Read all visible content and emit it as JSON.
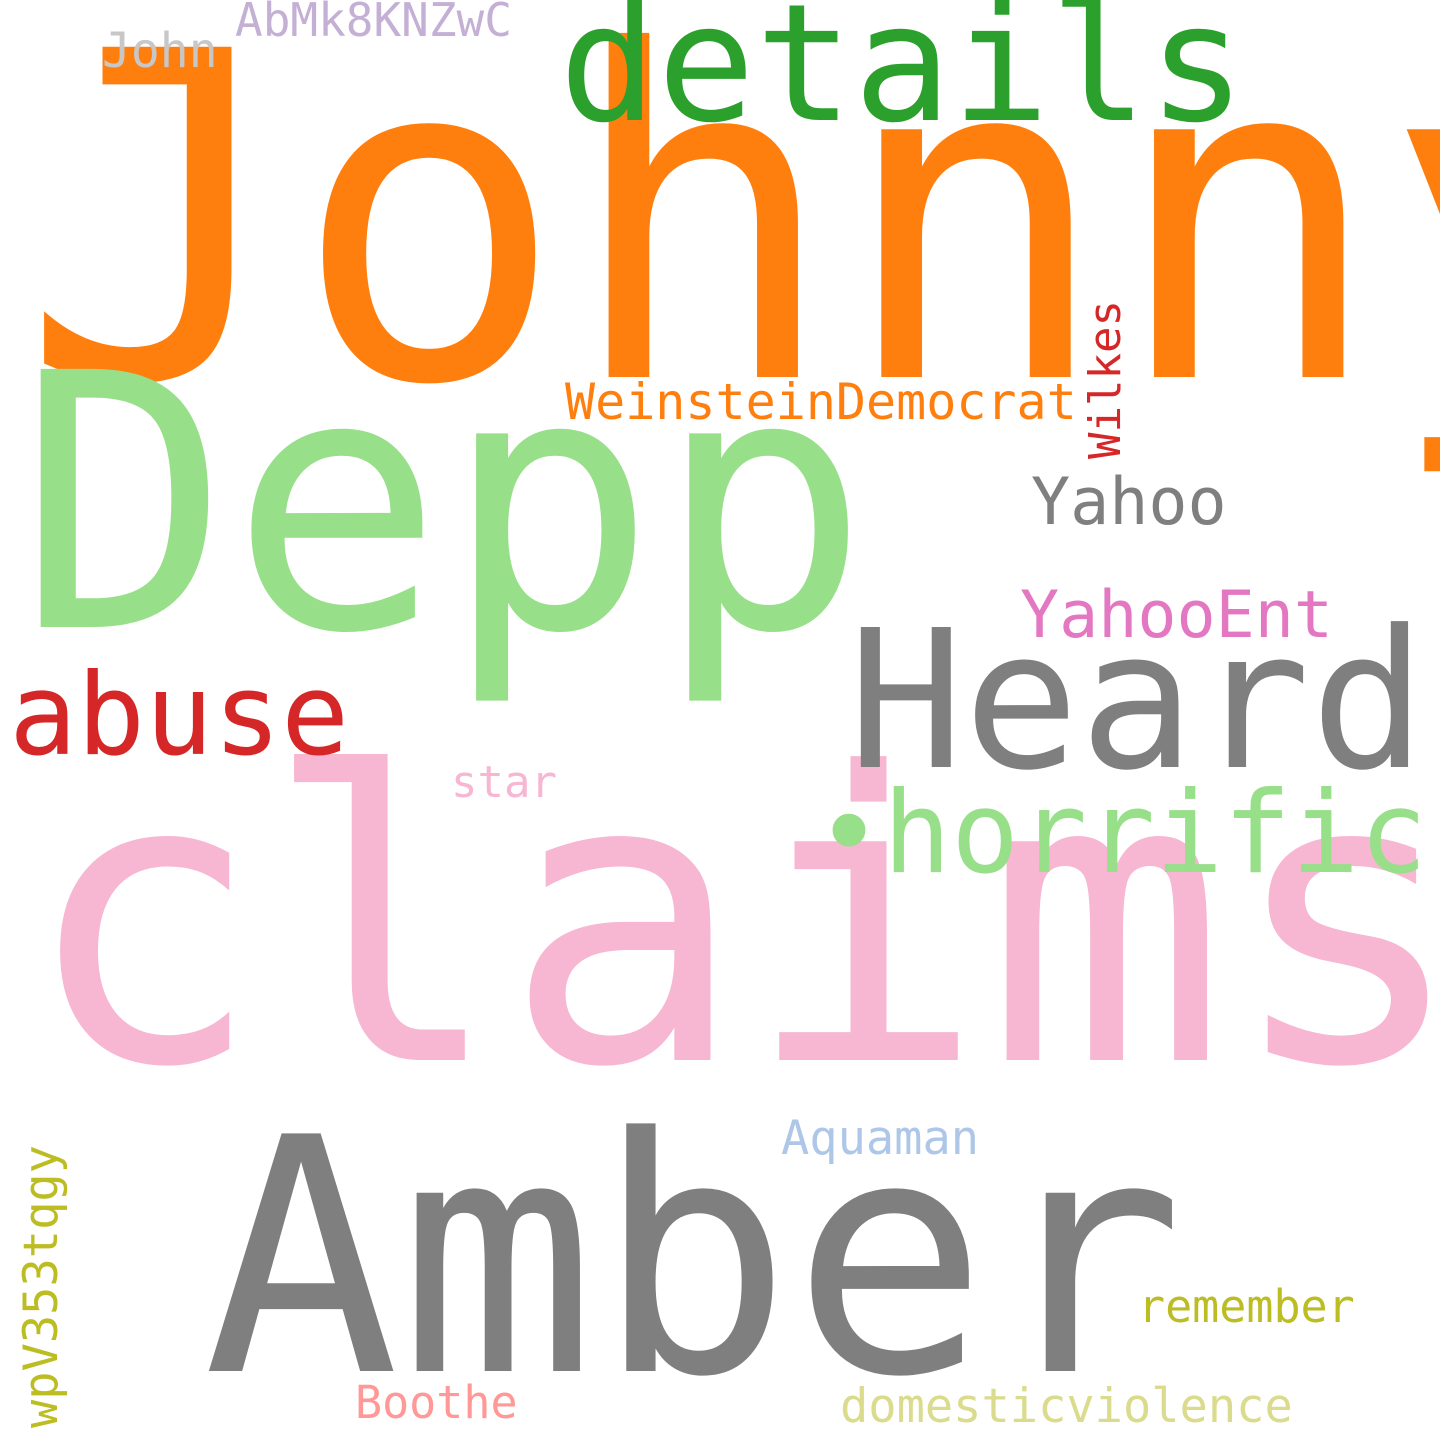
{
  "words": [
    {
      "id": "johnny",
      "text": "Johnny",
      "color": "#ff7f0e"
    },
    {
      "id": "claims",
      "text": "claims",
      "color": "#f7b6d2"
    },
    {
      "id": "depp",
      "text": "Depp",
      "color": "#98df8a"
    },
    {
      "id": "amber",
      "text": "Amber",
      "color": "#7f7f7f"
    },
    {
      "id": "heard",
      "text": "Heard",
      "color": "#7f7f7f"
    },
    {
      "id": "details",
      "text": "details",
      "color": "#2ca02c"
    },
    {
      "id": "horrific",
      "text": "•horrific",
      "color": "#98df8a"
    },
    {
      "id": "abuse",
      "text": "abuse",
      "color": "#d62728"
    },
    {
      "id": "yahoo",
      "text": "Yahoo",
      "color": "#7f7f7f"
    },
    {
      "id": "yahooent",
      "text": "YahooEnt",
      "color": "#e377c2"
    },
    {
      "id": "weinsteindemocrat",
      "text": "WeinsteinDemocrat",
      "color": "#ff7f0e"
    },
    {
      "id": "wilkes",
      "text": "Wilkes",
      "color": "#d62728"
    },
    {
      "id": "abmk8knzwc",
      "text": "AbMk8KNZwC",
      "color": "#c5b0d5"
    },
    {
      "id": "john",
      "text": "John",
      "color": "#c7c7c7"
    },
    {
      "id": "star",
      "text": "star",
      "color": "#f7b6d2"
    },
    {
      "id": "aquaman",
      "text": "Aquaman",
      "color": "#aec7e8"
    },
    {
      "id": "remember",
      "text": "remember",
      "color": "#bcbd22"
    },
    {
      "id": "boothe",
      "text": "Boothe",
      "color": "#ff9896"
    },
    {
      "id": "domesticviolence",
      "text": "domesticviolence",
      "color": "#dbdb8d"
    },
    {
      "id": "wpv353tqgy",
      "text": "wpV353tqgy",
      "color": "#bcbd22"
    }
  ]
}
